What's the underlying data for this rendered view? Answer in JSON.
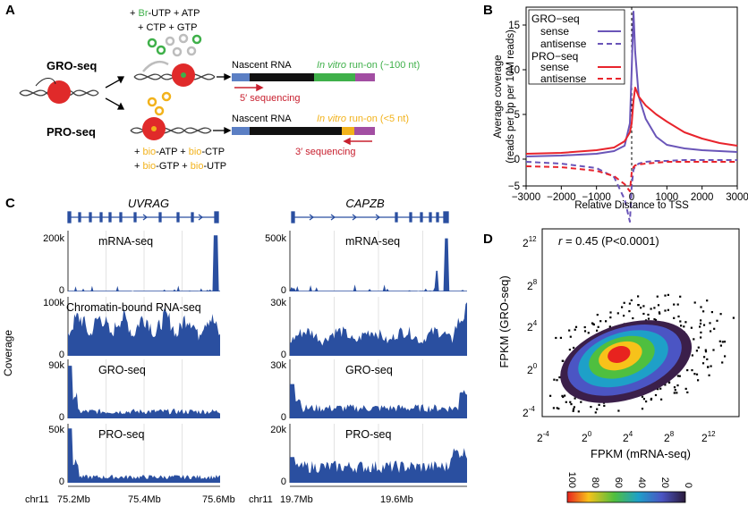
{
  "panels": {
    "A": {
      "label": "A",
      "gro_label": "GRO-seq",
      "pro_label": "PRO-seq",
      "gro_nucleotides": [
        {
          "prefix": "+ ",
          "mod": "Br",
          "rest": "-UTP + ATP"
        },
        {
          "prefix": "",
          "mod": "",
          "rest": "+ CTP + GTP"
        }
      ],
      "pro_nucleotides": [
        {
          "p1": "+ ",
          "m1": "bio",
          "r1": "-ATP + ",
          "m2": "bio",
          "r2": "-CTP"
        },
        {
          "p1": "+ ",
          "m1": "bio",
          "r1": "-GTP + ",
          "m2": "bio",
          "r2": "-UTP"
        }
      ],
      "gro_row": {
        "nascent": "Nascent RNA",
        "runon_italic": "In vitro",
        "runon_rest": " run-on (~100 nt)",
        "seq": "5′ sequencing"
      },
      "pro_row": {
        "nascent": "Nascent RNA",
        "runon_italic": "In vitro",
        "runon_rest": " run-on (<5 nt)",
        "seq": "3′ sequencing"
      },
      "colors": {
        "green": "#3fb04a",
        "orange": "#f2b21b",
        "red": "#c8202f",
        "blue": "#5b7fc4",
        "purple": "#a24ea2"
      }
    },
    "B": {
      "label": "B",
      "legend": {
        "gro_title": "GRO−seq",
        "gro_sense": "sense",
        "gro_antisense": "antisense",
        "pro_title": "PRO−seq",
        "pro_sense": "sense",
        "pro_antisense": "antisense"
      },
      "colors": {
        "gro": "#6a55b8",
        "pro": "#e8242c"
      }
    },
    "C": {
      "label": "C",
      "genes": [
        "UVRAG",
        "CAPZB"
      ],
      "coverage_label": "Coverage",
      "tracks": [
        {
          "name": "mRNA-seq",
          "left_ticks": [
            "200k",
            "0"
          ],
          "right_ticks": [
            "500k",
            "0"
          ]
        },
        {
          "name": "Chromatin-bound RNA-seq",
          "left_ticks": [
            "100k",
            "0"
          ],
          "right_ticks": [
            "30k",
            "0"
          ]
        },
        {
          "name": "GRO-seq",
          "left_ticks": [
            "90k",
            "0"
          ],
          "right_ticks": [
            "30k",
            "0"
          ]
        },
        {
          "name": "PRO-seq",
          "left_ticks": [
            "50k",
            "0"
          ],
          "right_ticks": [
            "20k",
            "0"
          ]
        }
      ],
      "axis_left": [
        "chr11",
        "75.2Mb",
        "75.4Mb",
        "75.6Mb"
      ],
      "axis_right": [
        "chr11",
        "19.7Mb",
        "19.6Mb"
      ],
      "track_color": "#2a4fa0"
    },
    "D": {
      "label": "D",
      "annotation": {
        "r": "r",
        "rest": " = 0.45 (P<0.0001)"
      },
      "xlabel": "FPKM (mRNA-seq)",
      "ylabel": "FPKM (GRO-seq)",
      "colorbar_ticks": [
        "100",
        "80",
        "60",
        "40",
        "20",
        "0"
      ]
    }
  },
  "chart_data": {
    "type": "line",
    "xlabel": "Relative Distance to TSS",
    "ylabel": "Average coverage (reads per bp per 10M reads)",
    "xlim": [
      -3000,
      3000
    ],
    "ylim": [
      -3,
      17
    ],
    "x_ticks": [
      "−3000",
      "−2000",
      "−1000",
      "0",
      "1000",
      "2000",
      "3000"
    ],
    "y_ticks": [
      "−5",
      "0",
      "5",
      "10",
      "15"
    ],
    "x": [
      -3000,
      -2000,
      -1000,
      -500,
      -200,
      -50,
      0,
      50,
      100,
      200,
      400,
      700,
      1000,
      1500,
      2000,
      2500,
      3000
    ],
    "series": [
      {
        "name": "GRO−seq sense",
        "values": [
          0.3,
          0.4,
          0.6,
          0.9,
          1.5,
          4,
          10,
          16.5,
          12,
          7,
          4.5,
          2.5,
          1.6,
          1.2,
          1.0,
          0.9,
          0.8
        ]
      },
      {
        "name": "GRO−seq antisense",
        "values": [
          -0.3,
          -0.5,
          -1.0,
          -2.0,
          -4.5,
          -7.0,
          -3.0,
          -1.2,
          -0.8,
          -0.5,
          -0.3,
          -0.2,
          -0.2,
          -0.1,
          -0.1,
          -0.1,
          -0.1
        ]
      },
      {
        "name": "PRO−seq sense",
        "values": [
          0.6,
          0.7,
          1.0,
          1.3,
          2.0,
          3.0,
          4.0,
          6.5,
          8.0,
          7.0,
          6.0,
          5.0,
          4.2,
          3.0,
          2.3,
          1.8,
          1.5
        ]
      },
      {
        "name": "PRO−seq antisense",
        "values": [
          -0.8,
          -0.9,
          -1.3,
          -1.9,
          -2.8,
          -3.6,
          -1.5,
          -0.9,
          -0.7,
          -0.6,
          -0.5,
          -0.4,
          -0.3,
          -0.3,
          -0.3,
          -0.3,
          -0.3
        ]
      }
    ]
  }
}
